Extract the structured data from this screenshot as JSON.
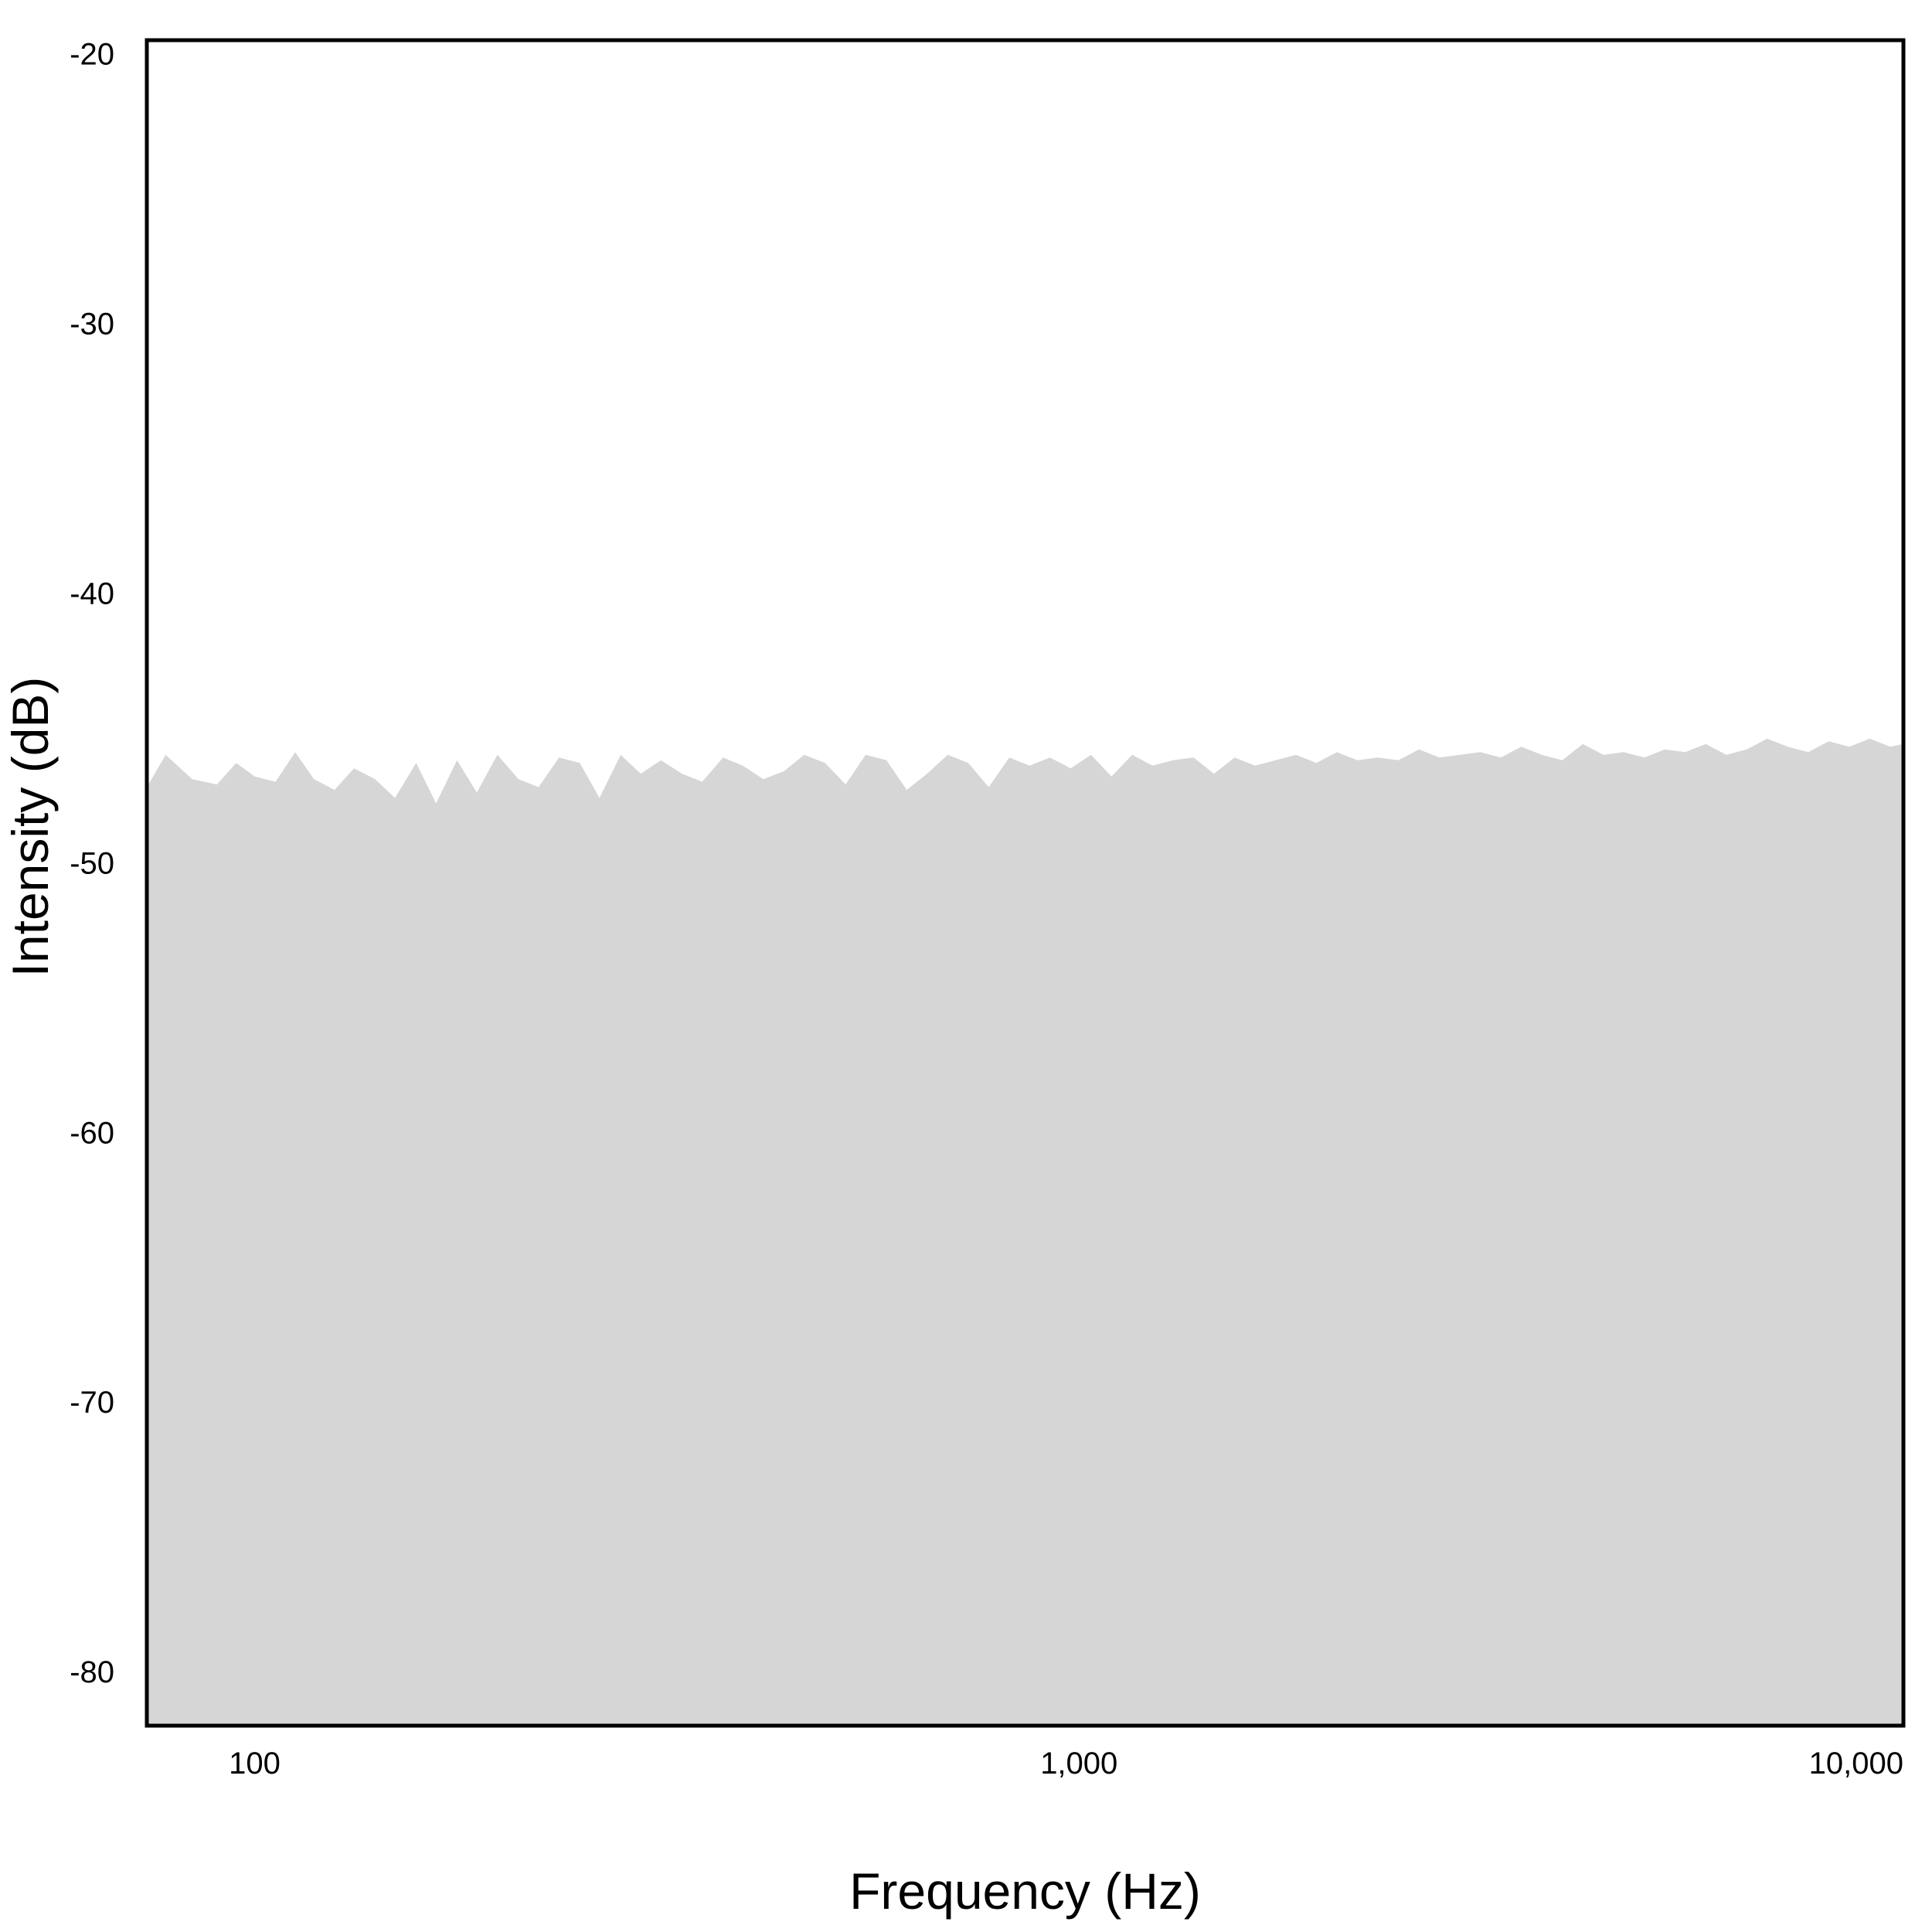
{
  "chart_data": {
    "type": "area",
    "title": "",
    "xlabel": "Frequency (Hz)",
    "ylabel": "Intensity (dB)",
    "xscale": "log",
    "xlim": [
      74,
      10000
    ],
    "ylim": [
      -82,
      -19.5
    ],
    "grid": false,
    "x_ticks": [
      {
        "value": 100,
        "label": "100"
      },
      {
        "value": 1000,
        "label": "1,000"
      },
      {
        "value": 10000,
        "label": "10,000"
      }
    ],
    "y_ticks": [
      {
        "value": -20,
        "label": "-20"
      },
      {
        "value": -30,
        "label": "-30"
      },
      {
        "value": -40,
        "label": "-40"
      },
      {
        "value": -50,
        "label": "-50"
      },
      {
        "value": -60,
        "label": "-60"
      },
      {
        "value": -70,
        "label": "-70"
      },
      {
        "value": -80,
        "label": "-80"
      }
    ],
    "fill_color": "#d6d6d6",
    "series": [
      {
        "x": [
          74,
          78,
          84,
          90,
          95,
          100,
          106,
          112,
          118,
          125,
          132,
          140,
          148,
          157,
          166,
          176,
          186,
          197,
          209,
          221,
          234,
          248,
          262,
          278,
          294,
          311,
          330,
          349,
          370,
          391,
          414,
          439,
          464,
          492,
          521,
          551,
          584,
          618,
          654,
          693,
          734,
          777,
          823,
          871,
          922,
          977,
          1034,
          1095,
          1160,
          1228,
          1300,
          1377,
          1458,
          1544,
          1635,
          1731,
          1833,
          1941,
          2055,
          2176,
          2304,
          2440,
          2584,
          2736,
          2897,
          3068,
          3248,
          3440,
          3642,
          3857,
          4084,
          4325,
          4580,
          4849,
          5135,
          5437,
          5758,
          6097,
          6456,
          6836,
          7239,
          7666,
          8117,
          8595,
          9102,
          9638,
          10000
        ],
        "y": [
          -47.2,
          -46.0,
          -46.9,
          -47.1,
          -46.3,
          -46.8,
          -47.0,
          -45.9,
          -46.9,
          -47.3,
          -46.5,
          -46.9,
          -47.6,
          -46.3,
          -47.8,
          -46.2,
          -47.4,
          -46.0,
          -46.9,
          -47.2,
          -46.1,
          -46.3,
          -47.6,
          -46.0,
          -46.7,
          -46.2,
          -46.7,
          -47.0,
          -46.1,
          -46.4,
          -46.9,
          -46.6,
          -46.0,
          -46.3,
          -47.1,
          -46.0,
          -46.2,
          -47.3,
          -46.7,
          -46.0,
          -46.3,
          -47.2,
          -46.1,
          -46.4,
          -46.1,
          -46.5,
          -46.0,
          -46.8,
          -46.0,
          -46.4,
          -46.2,
          -46.1,
          -46.7,
          -46.1,
          -46.4,
          -46.2,
          -46.0,
          -46.3,
          -45.9,
          -46.2,
          -46.1,
          -46.2,
          -45.8,
          -46.1,
          -46.0,
          -45.9,
          -46.1,
          -45.7,
          -46.0,
          -46.2,
          -45.6,
          -46.0,
          -45.9,
          -46.1,
          -45.8,
          -45.9,
          -45.6,
          -46.0,
          -45.8,
          -45.4,
          -45.7,
          -45.9,
          -45.5,
          -45.7,
          -45.4,
          -45.7,
          -45.6
        ]
      }
    ]
  }
}
